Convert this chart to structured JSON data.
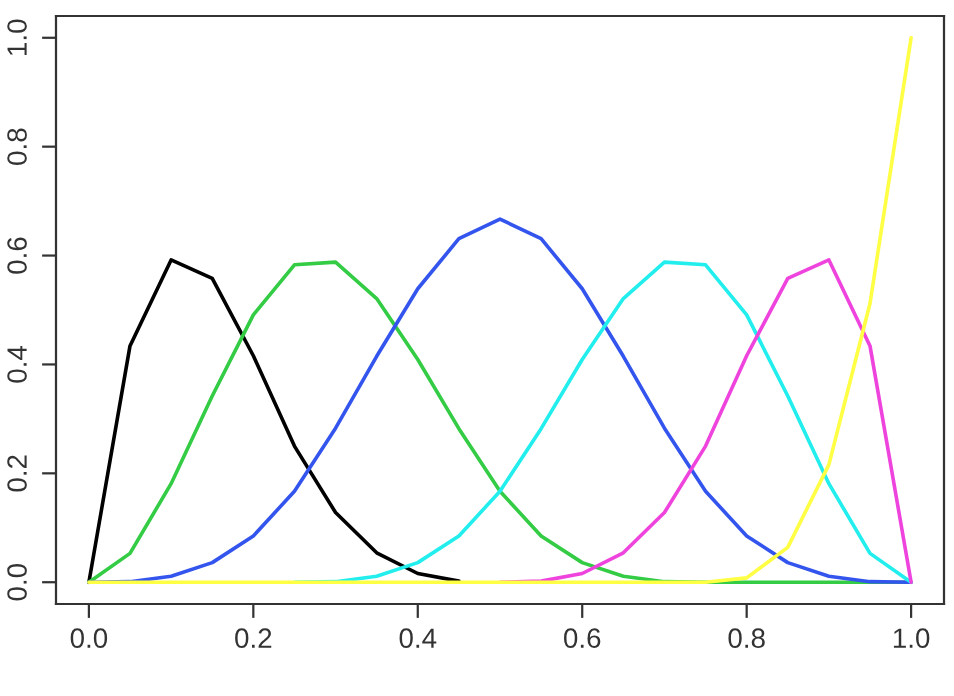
{
  "chart_data": {
    "type": "line",
    "x": [
      0,
      0.05,
      0.1,
      0.15,
      0.2,
      0.25,
      0.3,
      0.35,
      0.4,
      0.45,
      0.5,
      0.55,
      0.6,
      0.65,
      0.7,
      0.75,
      0.8,
      0.85,
      0.9,
      0.95,
      1
    ],
    "series": [
      {
        "color": "#000000",
        "values": [
          0,
          0.434,
          0.592,
          0.558,
          0.416,
          0.25,
          0.128,
          0.054,
          0.016,
          0.002,
          null,
          null,
          null,
          null,
          null,
          null,
          null,
          null,
          null,
          null,
          null
        ]
      },
      {
        "color": "#33cc44",
        "values": [
          0,
          0.053,
          0.181,
          0.342,
          0.491,
          0.583,
          0.588,
          0.521,
          0.409,
          0.282,
          0.167,
          0.085,
          0.036,
          0.011,
          0.001,
          0,
          0,
          0,
          0,
          0,
          0
        ]
      },
      {
        "color": "#3355ee",
        "values": [
          0,
          0.001,
          0.011,
          0.036,
          0.085,
          0.167,
          0.283,
          0.415,
          0.539,
          0.631,
          0.667,
          0.631,
          0.539,
          0.415,
          0.283,
          0.167,
          0.085,
          0.036,
          0.011,
          0.001,
          0
        ]
      },
      {
        "color": "#22eeee",
        "values": [
          null,
          null,
          null,
          null,
          null,
          0,
          0.001,
          0.011,
          0.036,
          0.085,
          0.167,
          0.282,
          0.409,
          0.521,
          0.588,
          0.583,
          0.491,
          0.342,
          0.181,
          0.053,
          0
        ]
      },
      {
        "color": "#ee44dd",
        "values": [
          null,
          null,
          null,
          null,
          null,
          null,
          null,
          null,
          null,
          null,
          0,
          0.002,
          0.016,
          0.054,
          0.128,
          0.25,
          0.416,
          0.558,
          0.592,
          0.434,
          0
        ]
      },
      {
        "color": "#ffff44",
        "values": [
          0,
          0,
          0,
          0,
          0,
          0,
          0,
          0,
          0,
          0,
          0,
          0,
          0,
          0,
          0,
          0,
          0.008,
          0.064,
          0.216,
          0.512,
          1
        ]
      }
    ],
    "xlim": [
      -0.04,
      1.04
    ],
    "ylim": [
      -0.04,
      1.04
    ],
    "xticks": [
      {
        "value": 0,
        "label": "0.0"
      },
      {
        "value": 0.2,
        "label": "0.2"
      },
      {
        "value": 0.4,
        "label": "0.4"
      },
      {
        "value": 0.6,
        "label": "0.6"
      },
      {
        "value": 0.8,
        "label": "0.8"
      },
      {
        "value": 1,
        "label": "1.0"
      }
    ],
    "yticks": [
      {
        "value": 0,
        "label": "0.0"
      },
      {
        "value": 0.2,
        "label": "0.2"
      },
      {
        "value": 0.4,
        "label": "0.4"
      },
      {
        "value": 0.6,
        "label": "0.6"
      },
      {
        "value": 0.8,
        "label": "0.8"
      },
      {
        "value": 1,
        "label": "1.0"
      }
    ],
    "grid": false,
    "marker": "none",
    "line_style": "solid"
  }
}
